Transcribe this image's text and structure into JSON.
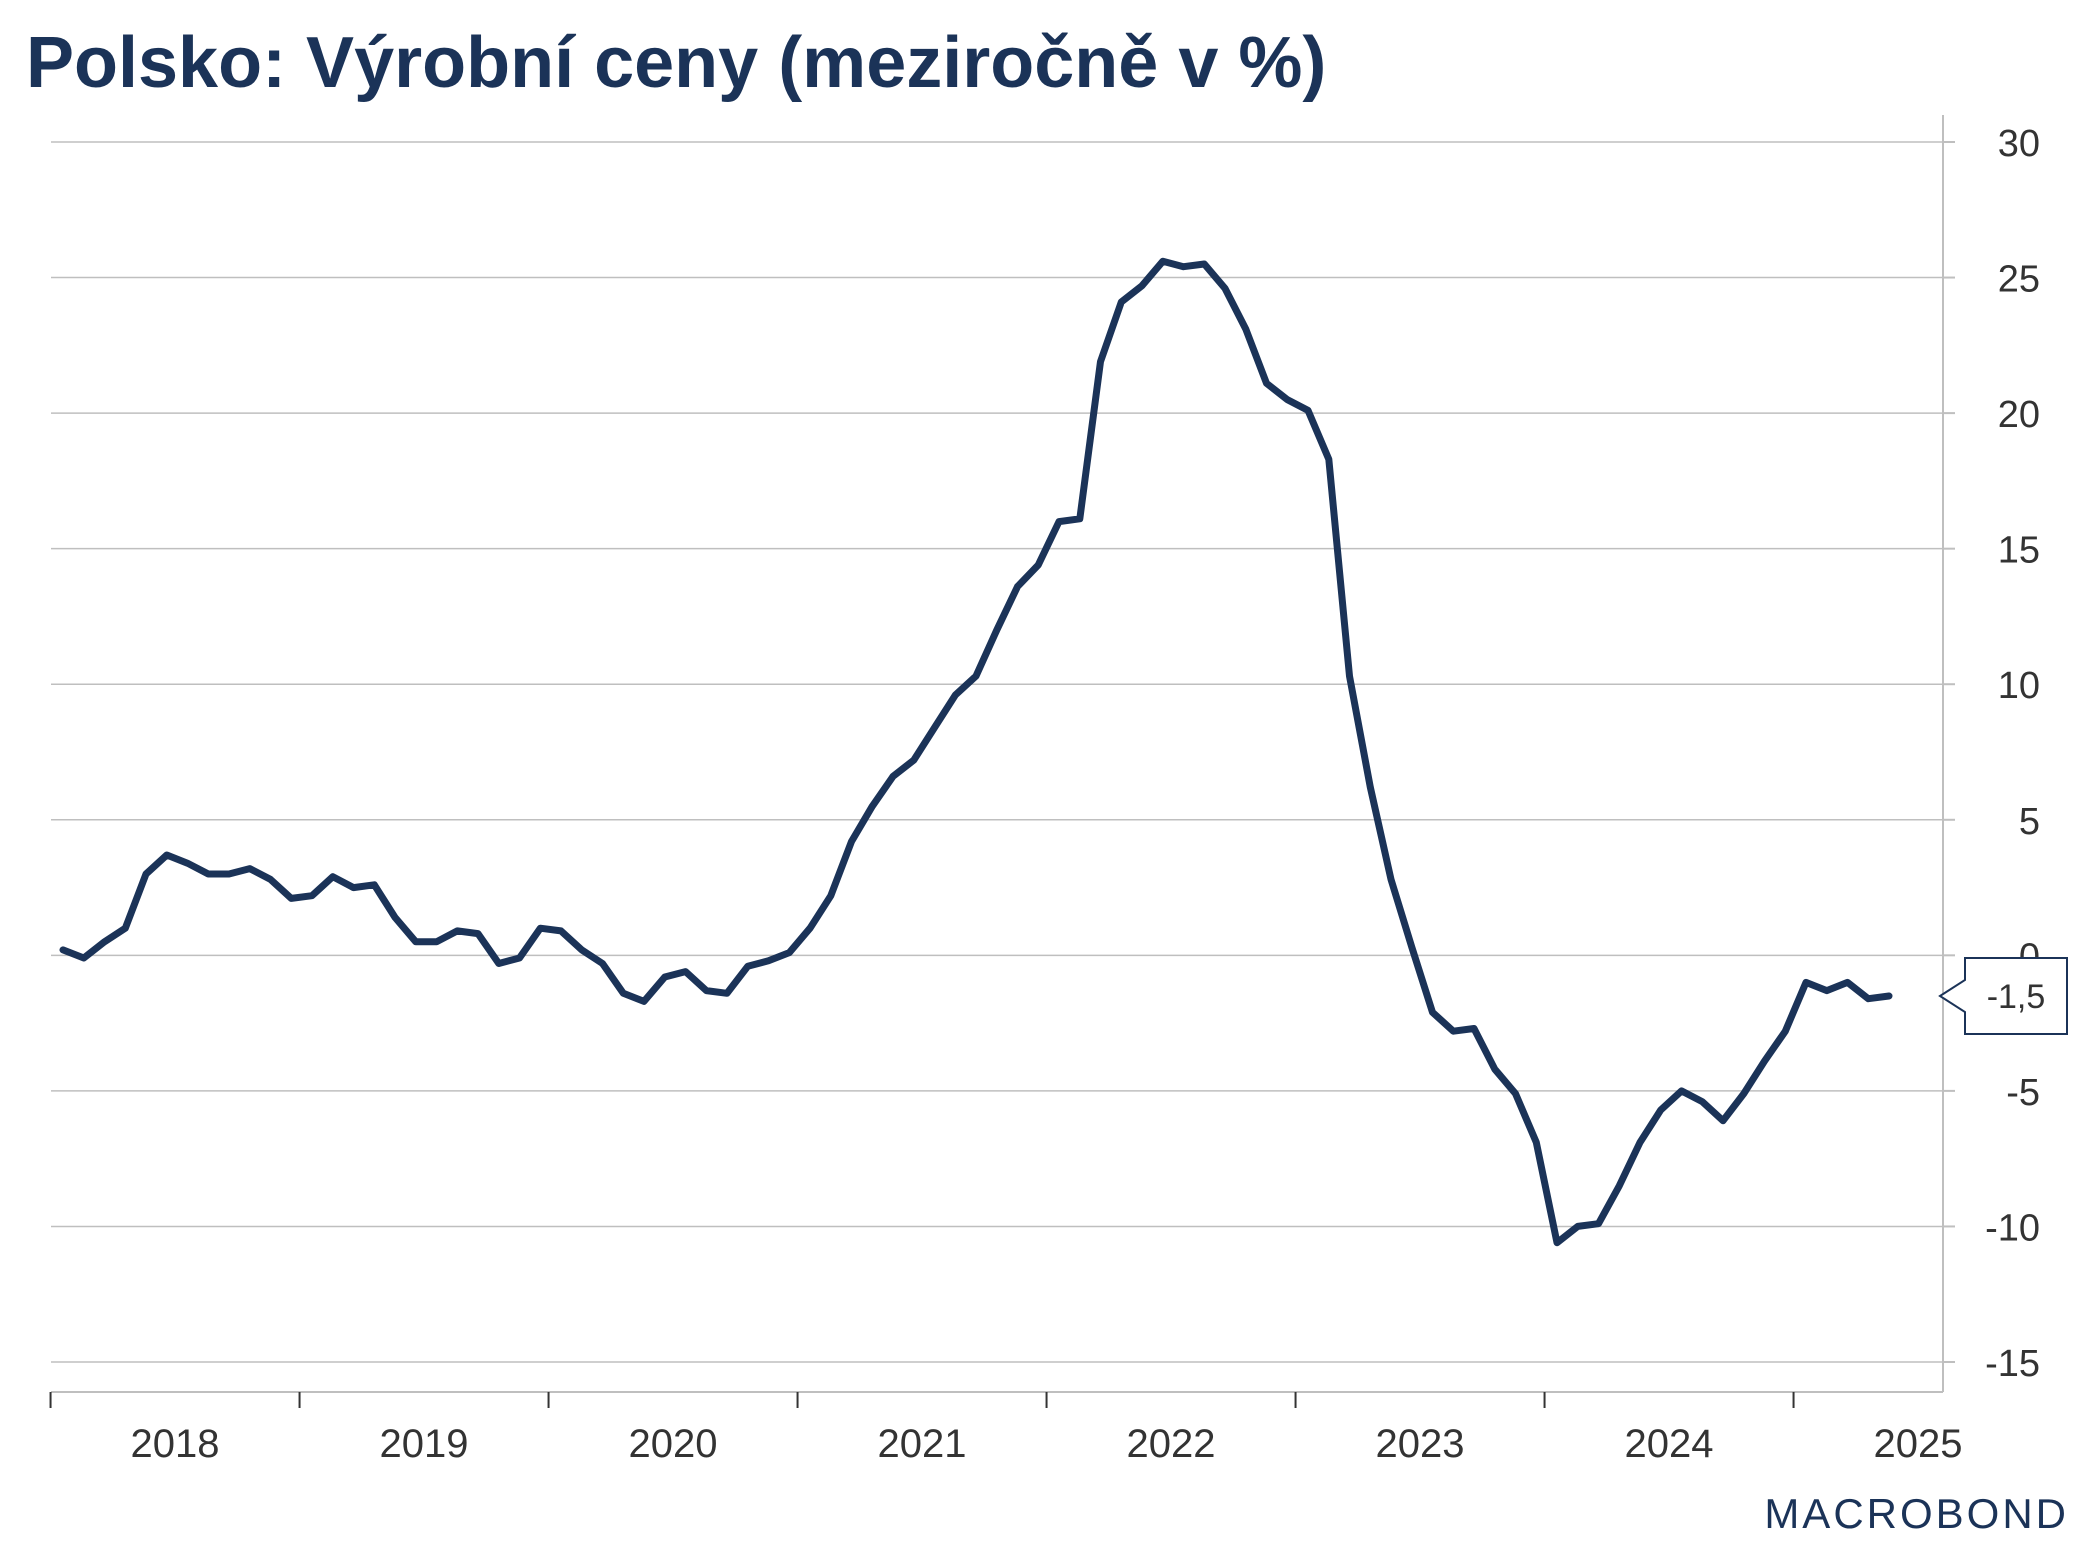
{
  "chart_data": {
    "type": "line",
    "title": "Polsko: Výrobní ceny (meziročně v %)",
    "xlabel": "",
    "ylabel": "",
    "ylim": [
      -15,
      30
    ],
    "yticks": [
      "30",
      "25",
      "20",
      "15",
      "10",
      "5",
      "0",
      "-5",
      "-10",
      "-15"
    ],
    "ytick_values": [
      30,
      25,
      20,
      15,
      10,
      5,
      0,
      -5,
      -10,
      -15
    ],
    "xticks": [
      "2018",
      "2019",
      "2020",
      "2021",
      "2022",
      "2023",
      "2024",
      "2025"
    ],
    "x_start": "2018-01",
    "last_value_label": "-1,5",
    "colors": {
      "line": "#1b3358",
      "grid": "#bfbfbf",
      "text": "#333333"
    },
    "series": [
      {
        "name": "Výrobní ceny (meziročně v %)",
        "values": [
          0.2,
          -0.1,
          0.5,
          1.0,
          3.0,
          3.7,
          3.4,
          3.0,
          3.0,
          3.2,
          2.8,
          2.1,
          2.2,
          2.9,
          2.5,
          2.6,
          1.4,
          0.5,
          0.5,
          0.9,
          0.8,
          -0.3,
          -0.1,
          1.0,
          0.9,
          0.2,
          -0.3,
          -1.4,
          -1.7,
          -0.8,
          -0.6,
          -1.3,
          -1.4,
          -0.4,
          -0.2,
          0.1,
          1.0,
          2.2,
          4.2,
          5.5,
          6.6,
          7.2,
          8.4,
          9.6,
          10.3,
          12.0,
          13.6,
          14.4,
          16.0,
          16.1,
          21.9,
          24.1,
          24.7,
          25.6,
          25.4,
          25.5,
          24.6,
          23.1,
          21.1,
          20.5,
          20.1,
          18.3,
          10.3,
          6.2,
          2.8,
          0.3,
          -2.1,
          -2.8,
          -2.7,
          -4.2,
          -5.1,
          -6.9,
          -10.6,
          -10.0,
          -9.9,
          -8.5,
          -6.9,
          -5.7,
          -5.0,
          -5.4,
          -6.1,
          -5.1,
          -3.9,
          -2.8,
          -1.0,
          -1.3,
          -1.0,
          -1.6,
          -1.5
        ]
      }
    ]
  },
  "brand": {
    "logo_text": "MACROBOND"
  }
}
